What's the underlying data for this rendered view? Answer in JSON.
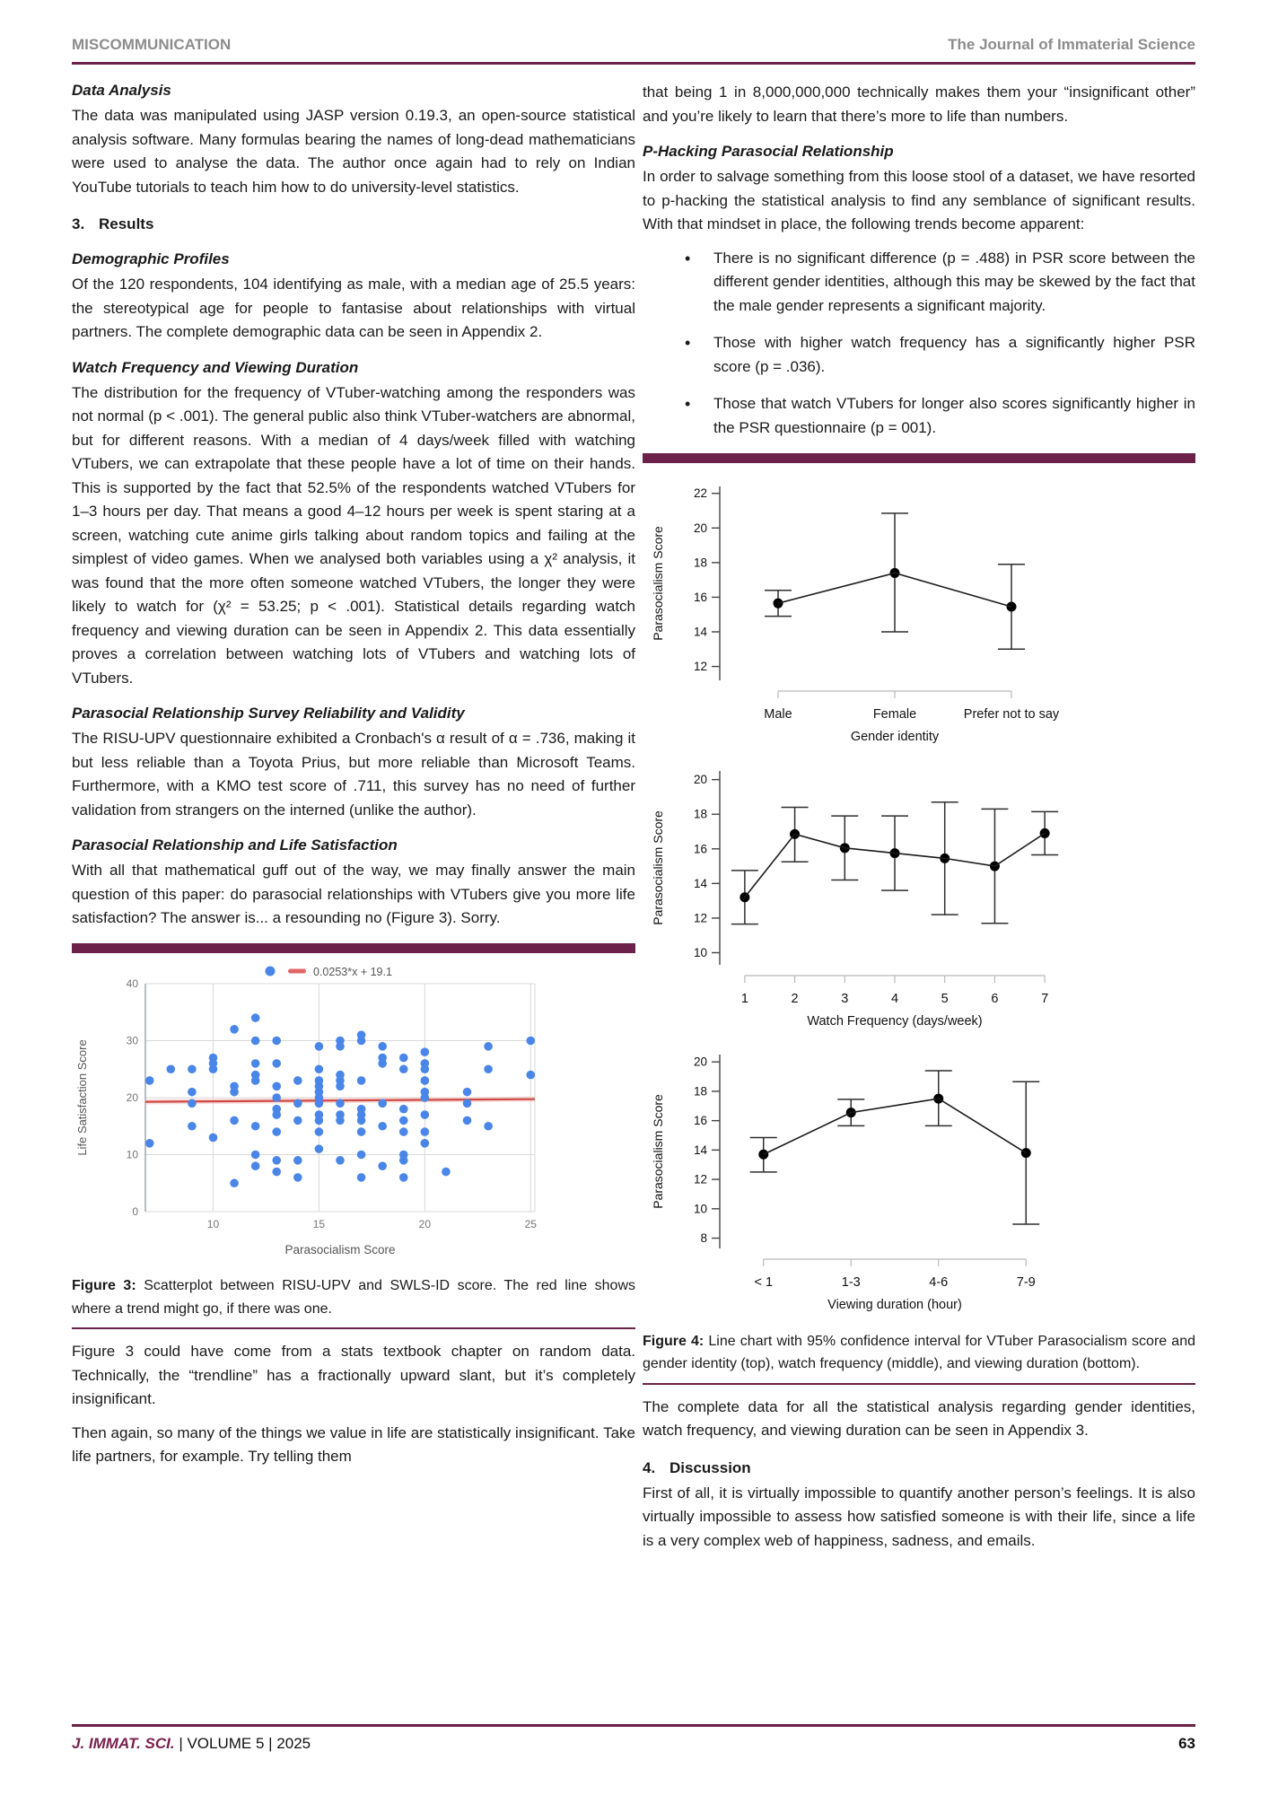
{
  "header": {
    "left": "MISCOMMUNICATION",
    "right": "The Journal of Immaterial Science"
  },
  "footer": {
    "journal": "J. IMMAT. SCI.",
    "issue": " | VOLUME 5 | 2025",
    "page": "63"
  },
  "colors": {
    "accent_maroon": "#6b2149",
    "scatter_blue": "#4a86e8",
    "trend_red": "#cf4a44"
  },
  "left_column": {
    "blocks": [
      {
        "type": "subheading",
        "text": "Data Analysis"
      },
      {
        "type": "para",
        "text": "The data was manipulated using JASP version 0.19.3, an open-source statistical analysis software. Many formulas bearing the names of long-dead mathematicians were used to analyse the data. The author once again had to rely on Indian YouTube tutorials to teach him how to do university-level statistics."
      },
      {
        "type": "numheading",
        "num": "3.",
        "text": "Results"
      },
      {
        "type": "subheading",
        "text": "Demographic Profiles"
      },
      {
        "type": "para",
        "text": "Of the 120 respondents, 104 identifying as male, with a median age of 25.5 years: the stereotypical age for people to fantasise about relationships with virtual partners. The complete demographic data can be seen in Appendix 2."
      },
      {
        "type": "subheading",
        "text": "Watch Frequency and Viewing Duration"
      },
      {
        "type": "para",
        "text": "The distribution for the frequency of VTuber-watching among the responders was not normal (p < .001). The general public also think VTuber-watchers are abnormal, but for different reasons. With a median of 4 days/week filled with watching VTubers, we can extrapolate that these people have a lot of time on their hands. This is supported by the fact that 52.5% of the respondents watched VTubers for 1–3 hours per day. That means a good 4–12 hours per week is spent staring at a screen, watching cute anime girls talking about random topics and failing at the simplest of video games. When we analysed both variables using a χ² analysis, it was found that the more often someone watched VTubers, the longer they were likely to watch for (χ² = 53.25; p < .001). Statistical details regarding watch frequency and viewing duration can be seen in Appendix 2. This data essentially proves a correlation between watching lots of VTubers and watching lots of VTubers."
      },
      {
        "type": "subheading",
        "text": "Parasocial Relationship Survey Reliability and Validity"
      },
      {
        "type": "para",
        "text": "The RISU-UPV questionnaire exhibited a Cronbach's α result of α = .736, making it but less reliable than a Toyota Prius, but more reliable than Microsoft Teams. Furthermore, with a KMO test score of .711, this survey has no need of further validation from strangers on the interned (unlike the author)."
      },
      {
        "type": "subheading",
        "text": "Parasocial Relationship and Life Satisfaction"
      },
      {
        "type": "para",
        "text": "With all that mathematical guff out of the way, we may finally answer the main question of this paper: do parasocial relationships with VTubers give you more life satisfaction? The answer is... a resounding no (Figure 3). Sorry."
      },
      {
        "type": "bar"
      },
      {
        "type": "chart",
        "chart": 0,
        "name": "figure3-scatterplot"
      },
      {
        "type": "caption",
        "bold": "Figure 3:",
        "text": " Scatterplot between RISU-UPV and SWLS-ID score. The red line shows where a trend might go, if there was one."
      },
      {
        "type": "rule"
      },
      {
        "type": "para",
        "text": "Figure 3 could have come from a stats textbook chapter on random data. Technically, the “trendline” has a fractionally upward slant, but it’s completely insignificant."
      },
      {
        "type": "para",
        "text": "Then again, so many of the things we value in life are statistically insignificant. Take life partners, for example. Try telling them"
      }
    ]
  },
  "right_column": {
    "blocks": [
      {
        "type": "para",
        "text": "that being 1 in 8,000,000,000 technically makes them your “insignificant other” and you’re likely to learn that there’s more to life than numbers."
      },
      {
        "type": "subheading",
        "text": "P-Hacking Parasocial Relationship"
      },
      {
        "type": "para",
        "text": "In order to salvage something from this loose stool of a dataset, we have resorted to p-hacking the statistical analysis to find any semblance of significant results. With that mindset in place, the following trends become apparent:"
      },
      {
        "type": "bullets",
        "items": [
          "There is no significant difference (p = .488) in PSR score between the different gender identities, although this may be skewed by the fact that the male gender represents a significant majority.",
          "Those with higher watch frequency has a significantly higher PSR score (p = .036).",
          "Those that watch VTubers for longer also scores significantly higher in the PSR questionnaire (p = 001)."
        ]
      },
      {
        "type": "bar"
      },
      {
        "type": "chart",
        "chart": 1,
        "name": "figure4-gender-chart"
      },
      {
        "type": "chart",
        "chart": 2,
        "name": "figure4-watch-frequency-chart"
      },
      {
        "type": "chart",
        "chart": 3,
        "name": "figure4-viewing-duration-chart"
      },
      {
        "type": "caption",
        "bold": "Figure 4:",
        "text": " Line chart with 95% confidence interval for VTuber Parasocialism score and gender identity (top), watch frequency (middle), and viewing duration (bottom)."
      },
      {
        "type": "rule"
      },
      {
        "type": "para",
        "text": "The complete data for all the statistical analysis regarding gender identities, watch frequency, and viewing duration can be seen in Appendix 3."
      },
      {
        "type": "numheading",
        "num": "4.",
        "text": "Discussion"
      },
      {
        "type": "para",
        "text": "First of all, it is virtually impossible to quantify another person’s feelings. It is also virtually impossible to assess how satisfied someone is with their life, since a life is a very complex web of happiness, sadness, and emails."
      }
    ]
  },
  "chart_data": [
    {
      "type": "scatter",
      "xlabel": "Parasocialism Score",
      "ylabel": "Life Satisfaction Score",
      "xlim": [
        6.8,
        25.2
      ],
      "ylim": [
        0,
        40
      ],
      "xticks": [
        10,
        15,
        20,
        25
      ],
      "yticks": [
        0,
        10,
        20,
        30,
        40
      ],
      "legend": "0.0253*x + 19.1",
      "trendline": {
        "slope": 0.0253,
        "intercept": 19.1
      },
      "point_color": "#4a86e8",
      "trend_color": "#cf4a44",
      "points": [
        [
          7,
          23
        ],
        [
          7,
          12
        ],
        [
          8,
          25
        ],
        [
          9,
          25
        ],
        [
          9,
          21
        ],
        [
          9,
          19
        ],
        [
          9,
          15
        ],
        [
          10,
          27
        ],
        [
          10,
          26
        ],
        [
          10,
          25
        ],
        [
          10,
          13
        ],
        [
          11,
          32
        ],
        [
          11,
          22
        ],
        [
          11,
          21
        ],
        [
          11,
          16
        ],
        [
          11,
          5
        ],
        [
          12,
          34
        ],
        [
          12,
          30
        ],
        [
          12,
          26
        ],
        [
          12,
          24
        ],
        [
          12,
          23
        ],
        [
          12,
          15
        ],
        [
          12,
          10
        ],
        [
          12,
          8
        ],
        [
          13,
          30
        ],
        [
          13,
          26
        ],
        [
          13,
          22
        ],
        [
          13,
          20
        ],
        [
          13,
          18
        ],
        [
          13,
          17
        ],
        [
          13,
          14
        ],
        [
          13,
          9
        ],
        [
          13,
          7
        ],
        [
          14,
          23
        ],
        [
          14,
          19
        ],
        [
          14,
          16
        ],
        [
          14,
          9
        ],
        [
          14,
          6
        ],
        [
          15,
          29
        ],
        [
          15,
          25
        ],
        [
          15,
          23
        ],
        [
          15,
          22
        ],
        [
          15,
          21
        ],
        [
          15,
          20
        ],
        [
          15,
          19
        ],
        [
          15,
          17
        ],
        [
          15,
          16
        ],
        [
          15,
          14
        ],
        [
          15,
          11
        ],
        [
          16,
          30
        ],
        [
          16,
          29
        ],
        [
          16,
          24
        ],
        [
          16,
          23
        ],
        [
          16,
          22
        ],
        [
          16,
          19
        ],
        [
          16,
          17
        ],
        [
          16,
          16
        ],
        [
          16,
          9
        ],
        [
          17,
          31
        ],
        [
          17,
          30
        ],
        [
          17,
          23
        ],
        [
          17,
          18
        ],
        [
          17,
          17
        ],
        [
          17,
          16
        ],
        [
          17,
          14
        ],
        [
          17,
          10
        ],
        [
          17,
          6
        ],
        [
          18,
          29
        ],
        [
          18,
          27
        ],
        [
          18,
          26
        ],
        [
          18,
          19
        ],
        [
          18,
          15
        ],
        [
          18,
          8
        ],
        [
          19,
          27
        ],
        [
          19,
          25
        ],
        [
          19,
          18
        ],
        [
          19,
          16
        ],
        [
          19,
          14
        ],
        [
          19,
          10
        ],
        [
          19,
          9
        ],
        [
          19,
          6
        ],
        [
          20,
          28
        ],
        [
          20,
          26
        ],
        [
          20,
          25
        ],
        [
          20,
          23
        ],
        [
          20,
          21
        ],
        [
          20,
          20
        ],
        [
          20,
          17
        ],
        [
          20,
          14
        ],
        [
          20,
          12
        ],
        [
          21,
          7
        ],
        [
          22,
          21
        ],
        [
          22,
          19
        ],
        [
          22,
          16
        ],
        [
          23,
          29
        ],
        [
          23,
          25
        ],
        [
          23,
          15
        ],
        [
          25,
          30
        ],
        [
          25,
          24
        ]
      ]
    },
    {
      "type": "line",
      "categories": [
        "Male",
        "Female",
        "Prefer not to say"
      ],
      "means": [
        15.65,
        17.4,
        15.45
      ],
      "ci_low": [
        14.9,
        14.0,
        13.0
      ],
      "ci_high": [
        16.4,
        20.85,
        17.9
      ],
      "ylim": [
        11.2,
        22.4
      ],
      "yticks": [
        12,
        14,
        16,
        18,
        20,
        22
      ],
      "xlabel": "Gender identity",
      "ylabel": "Parasocialism Score"
    },
    {
      "type": "line",
      "categories": [
        "1",
        "2",
        "3",
        "4",
        "5",
        "6",
        "7"
      ],
      "means": [
        13.2,
        16.85,
        16.05,
        15.75,
        15.45,
        15.0,
        16.9
      ],
      "ci_low": [
        11.65,
        15.25,
        14.2,
        13.6,
        12.2,
        11.7,
        15.65
      ],
      "ci_high": [
        14.75,
        18.4,
        17.9,
        17.9,
        18.7,
        18.3,
        18.15
      ],
      "ylim": [
        9.3,
        20.5
      ],
      "yticks": [
        10,
        12,
        14,
        16,
        18,
        20
      ],
      "xlabel": "Watch Frequency (days/week)",
      "ylabel": "Parasocialism Score"
    },
    {
      "type": "line",
      "categories": [
        "< 1",
        "1-3",
        "4-6",
        "7-9"
      ],
      "means": [
        13.7,
        16.55,
        17.5,
        13.8
      ],
      "ci_low": [
        12.5,
        15.65,
        15.65,
        8.95
      ],
      "ci_high": [
        14.85,
        17.45,
        19.4,
        18.65
      ],
      "ylim": [
        7.3,
        20.5
      ],
      "yticks": [
        8,
        10,
        12,
        14,
        16,
        18,
        20
      ],
      "xlabel": "Viewing duration (hour)",
      "ylabel": "Parasocialism Score"
    }
  ]
}
